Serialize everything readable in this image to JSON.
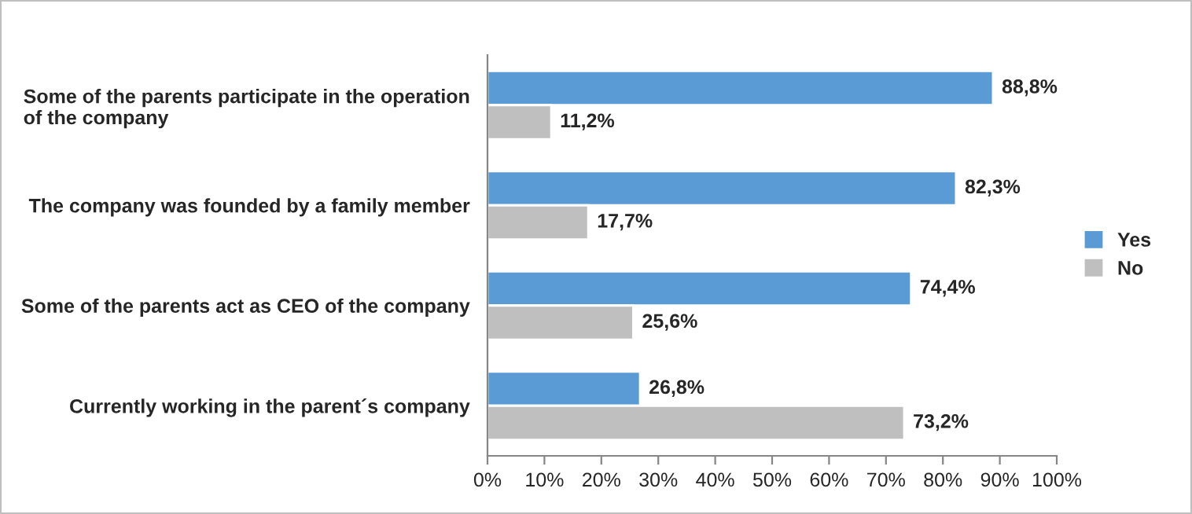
{
  "chart_data": {
    "type": "bar",
    "orientation": "horizontal",
    "categories": [
      "Some of the parents participate in the operation of the company",
      "The company was founded by a family member",
      "Some of the parents act as CEO of the company",
      "Currently working in the parent´s company"
    ],
    "series": [
      {
        "name": "Yes",
        "color": "#5b9bd5",
        "values": [
          88.8,
          82.3,
          74.4,
          26.8
        ],
        "value_labels": [
          "88,8%",
          "82,3%",
          "74,4%",
          "26,8%"
        ]
      },
      {
        "name": "No",
        "color": "#bfbfbf",
        "values": [
          11.2,
          17.7,
          25.6,
          73.2
        ],
        "value_labels": [
          "11,2%",
          "17,7%",
          "25,6%",
          "73,2%"
        ]
      }
    ],
    "xlim": [
      0,
      100
    ],
    "xticks": [
      {
        "value": 0,
        "label": "0%"
      },
      {
        "value": 10,
        "label": "10%"
      },
      {
        "value": 20,
        "label": "20%"
      },
      {
        "value": 30,
        "label": "30%"
      },
      {
        "value": 40,
        "label": "40%"
      },
      {
        "value": 50,
        "label": "50%"
      },
      {
        "value": 60,
        "label": "60%"
      },
      {
        "value": 70,
        "label": "70%"
      },
      {
        "value": 80,
        "label": "80%"
      },
      {
        "value": 90,
        "label": "90%"
      },
      {
        "value": 100,
        "label": "100%"
      }
    ],
    "grid": false,
    "legend": "right"
  }
}
